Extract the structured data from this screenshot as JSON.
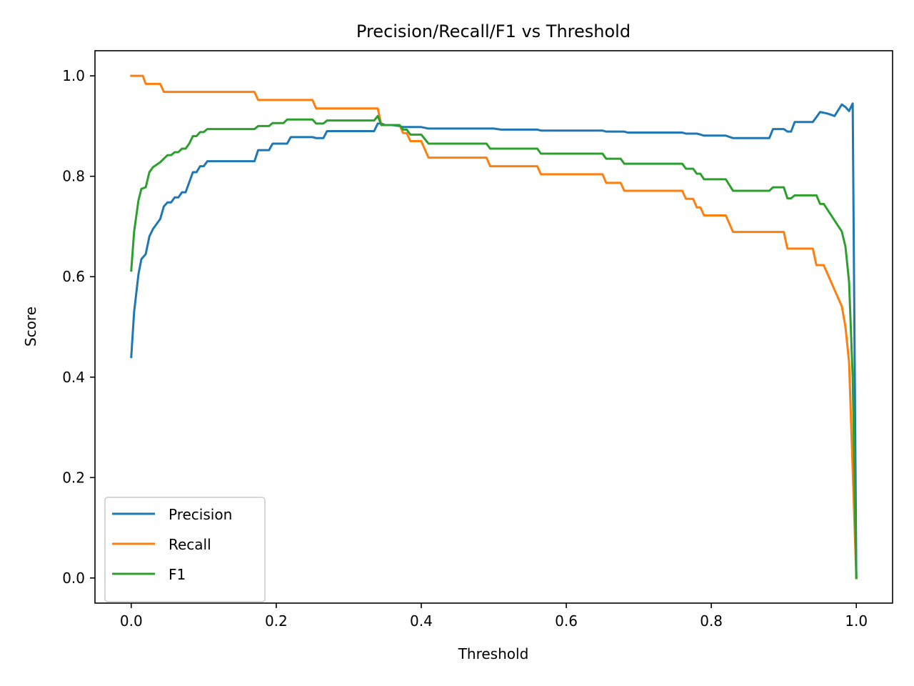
{
  "chart_data": {
    "type": "line",
    "title": "Precision/Recall/F1 vs Threshold",
    "xlabel": "Threshold",
    "ylabel": "Score",
    "xlim": [
      -0.05,
      1.05
    ],
    "ylim": [
      -0.05,
      1.05
    ],
    "xticks": [
      0.0,
      0.2,
      0.4,
      0.6,
      0.8,
      1.0
    ],
    "xtick_labels": [
      "0.0",
      "0.2",
      "0.4",
      "0.6",
      "0.8",
      "1.0"
    ],
    "yticks": [
      0.0,
      0.2,
      0.4,
      0.6,
      0.8,
      1.0
    ],
    "ytick_labels": [
      "0.0",
      "0.2",
      "0.4",
      "0.6",
      "0.8",
      "1.0"
    ],
    "grid": false,
    "legend_position": "lower-left",
    "series": [
      {
        "name": "Precision",
        "color": "#1f77b4",
        "x": [
          0.0,
          0.004,
          0.01,
          0.014,
          0.02,
          0.025,
          0.03,
          0.035,
          0.04,
          0.045,
          0.05,
          0.055,
          0.06,
          0.065,
          0.07,
          0.075,
          0.08,
          0.085,
          0.09,
          0.095,
          0.1,
          0.105,
          0.11,
          0.17,
          0.175,
          0.19,
          0.195,
          0.2,
          0.205,
          0.215,
          0.22,
          0.24,
          0.25,
          0.255,
          0.26,
          0.265,
          0.27,
          0.275,
          0.33,
          0.335,
          0.34,
          0.345,
          0.35,
          0.36,
          0.37,
          0.375,
          0.4,
          0.41,
          0.5,
          0.51,
          0.56,
          0.565,
          0.65,
          0.655,
          0.68,
          0.685,
          0.76,
          0.765,
          0.78,
          0.785,
          0.79,
          0.8,
          0.82,
          0.83,
          0.88,
          0.885,
          0.9,
          0.905,
          0.91,
          0.915,
          0.94,
          0.95,
          0.96,
          0.97,
          0.98,
          0.985,
          0.99,
          0.995,
          1.0
        ],
        "y": [
          0.44,
          0.53,
          0.605,
          0.635,
          0.645,
          0.68,
          0.695,
          0.705,
          0.715,
          0.74,
          0.748,
          0.748,
          0.758,
          0.758,
          0.768,
          0.768,
          0.788,
          0.808,
          0.808,
          0.82,
          0.82,
          0.83,
          0.83,
          0.83,
          0.852,
          0.852,
          0.865,
          0.865,
          0.865,
          0.865,
          0.878,
          0.878,
          0.878,
          0.876,
          0.876,
          0.876,
          0.89,
          0.89,
          0.89,
          0.89,
          0.905,
          0.905,
          0.902,
          0.902,
          0.9,
          0.898,
          0.898,
          0.895,
          0.895,
          0.893,
          0.893,
          0.891,
          0.891,
          0.889,
          0.889,
          0.887,
          0.887,
          0.885,
          0.885,
          0.883,
          0.881,
          0.881,
          0.881,
          0.876,
          0.876,
          0.894,
          0.894,
          0.889,
          0.889,
          0.908,
          0.908,
          0.928,
          0.925,
          0.92,
          0.943,
          0.938,
          0.93,
          0.945,
          0.0
        ]
      },
      {
        "name": "Recall",
        "color": "#ff7f0e",
        "x": [
          0.0,
          0.016,
          0.02,
          0.04,
          0.045,
          0.17,
          0.175,
          0.25,
          0.255,
          0.34,
          0.345,
          0.37,
          0.375,
          0.38,
          0.385,
          0.4,
          0.41,
          0.49,
          0.495,
          0.56,
          0.565,
          0.65,
          0.655,
          0.675,
          0.68,
          0.76,
          0.765,
          0.775,
          0.78,
          0.785,
          0.79,
          0.8,
          0.82,
          0.83,
          0.9,
          0.905,
          0.94,
          0.945,
          0.955,
          0.98,
          0.985,
          0.99,
          1.0
        ],
        "y": [
          1.0,
          1.0,
          0.984,
          0.984,
          0.968,
          0.968,
          0.952,
          0.952,
          0.935,
          0.935,
          0.902,
          0.902,
          0.886,
          0.886,
          0.87,
          0.87,
          0.837,
          0.837,
          0.82,
          0.82,
          0.804,
          0.804,
          0.787,
          0.787,
          0.771,
          0.771,
          0.755,
          0.755,
          0.738,
          0.738,
          0.722,
          0.722,
          0.722,
          0.689,
          0.689,
          0.656,
          0.656,
          0.623,
          0.623,
          0.541,
          0.5,
          0.43,
          0.0
        ]
      },
      {
        "name": "F1",
        "color": "#2ca02c",
        "x": [
          0.0,
          0.004,
          0.01,
          0.014,
          0.02,
          0.025,
          0.03,
          0.04,
          0.045,
          0.05,
          0.055,
          0.06,
          0.065,
          0.07,
          0.075,
          0.08,
          0.085,
          0.09,
          0.095,
          0.1,
          0.105,
          0.17,
          0.175,
          0.19,
          0.195,
          0.21,
          0.215,
          0.25,
          0.255,
          0.265,
          0.27,
          0.33,
          0.335,
          0.34,
          0.345,
          0.37,
          0.375,
          0.38,
          0.385,
          0.4,
          0.41,
          0.49,
          0.495,
          0.56,
          0.565,
          0.65,
          0.655,
          0.675,
          0.68,
          0.76,
          0.765,
          0.775,
          0.78,
          0.785,
          0.79,
          0.8,
          0.82,
          0.83,
          0.88,
          0.885,
          0.9,
          0.905,
          0.91,
          0.915,
          0.945,
          0.95,
          0.955,
          0.98,
          0.985,
          0.99,
          0.995,
          1.0
        ],
        "y": [
          0.612,
          0.69,
          0.752,
          0.775,
          0.778,
          0.808,
          0.818,
          0.828,
          0.835,
          0.842,
          0.842,
          0.848,
          0.848,
          0.855,
          0.855,
          0.865,
          0.88,
          0.88,
          0.888,
          0.888,
          0.894,
          0.894,
          0.9,
          0.9,
          0.906,
          0.906,
          0.913,
          0.913,
          0.905,
          0.905,
          0.911,
          0.911,
          0.911,
          0.92,
          0.902,
          0.902,
          0.893,
          0.893,
          0.883,
          0.883,
          0.865,
          0.865,
          0.855,
          0.855,
          0.845,
          0.845,
          0.835,
          0.835,
          0.825,
          0.825,
          0.815,
          0.815,
          0.805,
          0.805,
          0.794,
          0.794,
          0.794,
          0.771,
          0.771,
          0.778,
          0.778,
          0.756,
          0.756,
          0.762,
          0.762,
          0.745,
          0.745,
          0.69,
          0.66,
          0.59,
          0.4,
          0.0
        ]
      }
    ]
  }
}
